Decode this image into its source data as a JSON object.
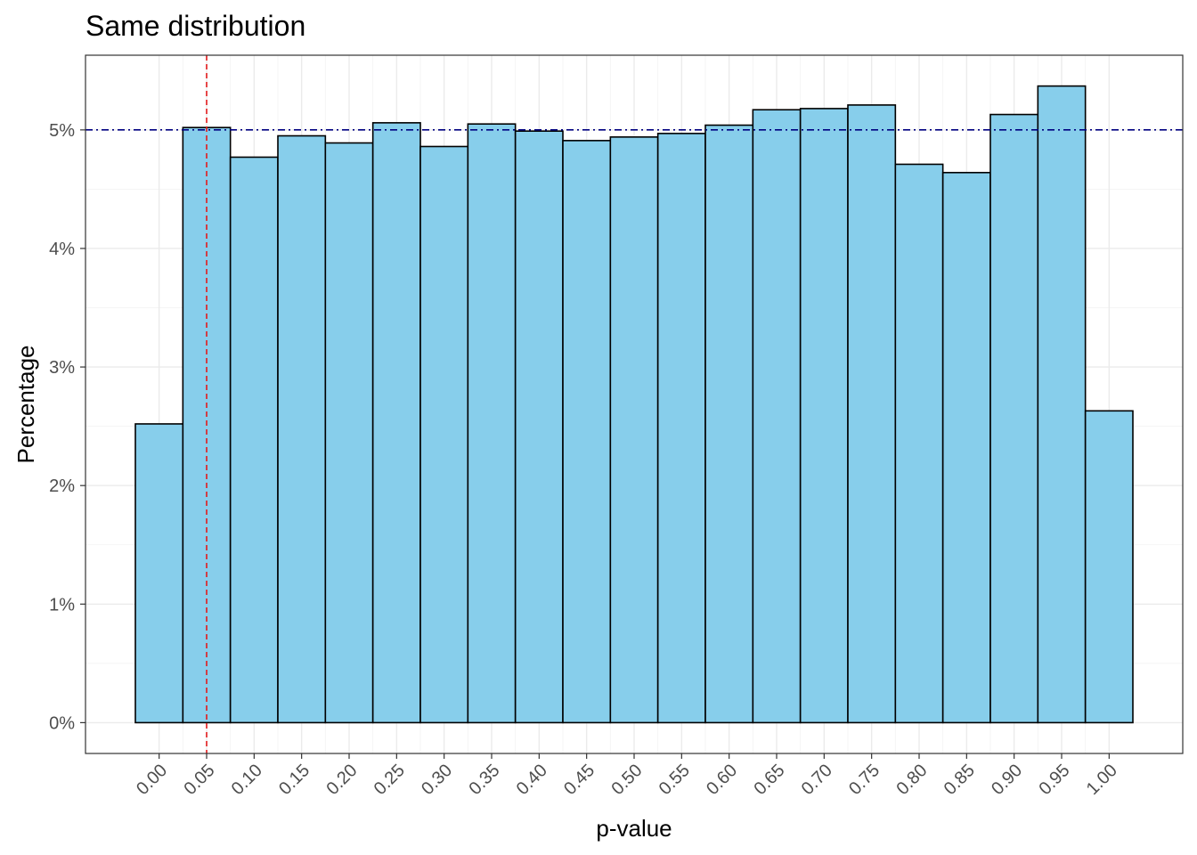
{
  "chart_data": {
    "type": "bar",
    "title": "Same distribution",
    "xlabel": "p-value",
    "ylabel": "Percentage",
    "categories": [
      "0.00",
      "0.05",
      "0.10",
      "0.15",
      "0.20",
      "0.25",
      "0.30",
      "0.35",
      "0.40",
      "0.45",
      "0.50",
      "0.55",
      "0.60",
      "0.65",
      "0.70",
      "0.75",
      "0.80",
      "0.85",
      "0.90",
      "0.95",
      "1.00"
    ],
    "values": [
      2.52,
      5.02,
      4.77,
      4.95,
      4.89,
      5.06,
      4.86,
      5.05,
      4.99,
      4.91,
      4.94,
      4.97,
      5.04,
      5.17,
      5.18,
      5.21,
      4.71,
      4.64,
      5.13,
      5.37,
      2.63
    ],
    "bin_width": 0.05,
    "yticks": [
      0,
      1,
      2,
      3,
      4,
      5
    ],
    "ytick_labels": [
      "0%",
      "1%",
      "2%",
      "3%",
      "4%",
      "5%"
    ],
    "ylim": [
      -0.26,
      5.63
    ],
    "xlim": [
      -0.0775,
      1.0775
    ],
    "grid": true,
    "bar_fill": "#87ceeb",
    "bar_outline": "#000000",
    "reference_lines": [
      {
        "orientation": "vertical",
        "x": 0.05,
        "color": "#e31a1c",
        "style": "dashed"
      },
      {
        "orientation": "horizontal",
        "y": 5,
        "color": "#000080",
        "style": "dotdash"
      }
    ]
  }
}
